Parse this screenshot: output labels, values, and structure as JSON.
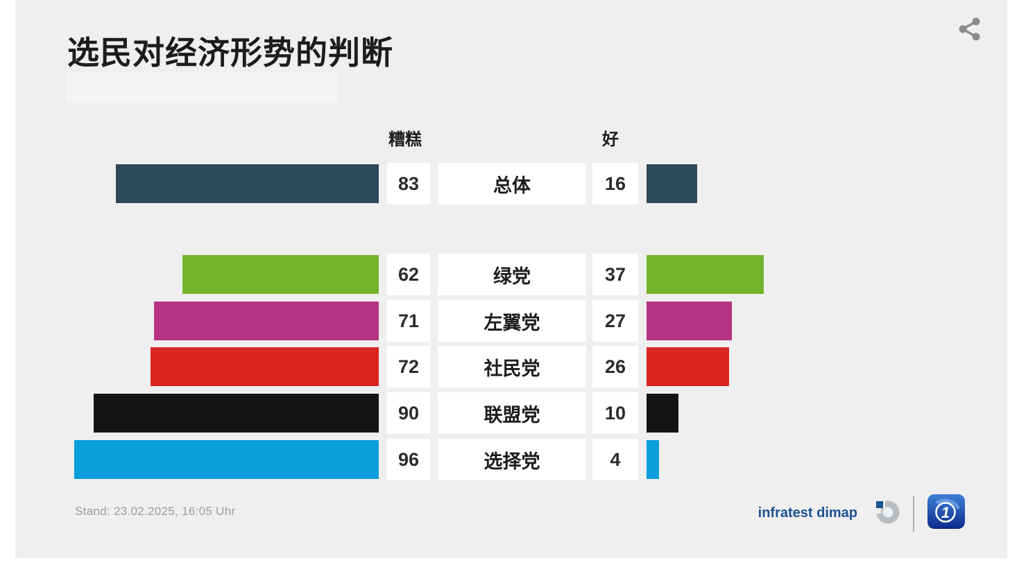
{
  "title": "选民对经济形势的判断",
  "chart_data": {
    "type": "bar",
    "subtype": "diverging-horizontal",
    "title": "选民对经济形势的判断",
    "left_header": "糟糕",
    "right_header": "好",
    "value_unit": "percent",
    "xlim": [
      0,
      100
    ],
    "categories": [
      "总体",
      "绿党",
      "左翼党",
      "社民党",
      "联盟党",
      "选择党"
    ],
    "series": [
      {
        "name": "糟糕",
        "values": [
          83,
          62,
          71,
          72,
          90,
          96
        ]
      },
      {
        "name": "好",
        "values": [
          16,
          37,
          27,
          26,
          10,
          4
        ]
      }
    ],
    "rows": [
      {
        "label": "总体",
        "bad": 83,
        "good": 16,
        "color": "#2d4857"
      },
      {
        "label": "绿党",
        "bad": 62,
        "good": 37,
        "color": "#72b52a"
      },
      {
        "label": "左翼党",
        "bad": 71,
        "good": 27,
        "color": "#b53383"
      },
      {
        "label": "社民党",
        "bad": 72,
        "good": 26,
        "color": "#da241f"
      },
      {
        "label": "联盟党",
        "bad": 90,
        "good": 10,
        "color": "#141413"
      },
      {
        "label": "选择党",
        "bad": 96,
        "good": 4,
        "color": "#0a9edd"
      }
    ],
    "legend": "none",
    "grid": false
  },
  "footer": {
    "stand": "Stand: 23.02.2025, 16:05 Uhr",
    "source_label": "infratest dimap"
  },
  "icons": {
    "share": "share-icon",
    "infratest_logo": "infratest-dimap-logo",
    "ard_logo": "ard-logo"
  },
  "colors": {
    "card_background": "#efefef",
    "page_background": "#ffffff",
    "box_background": "#ffffff",
    "title_text": "#1c1c1a",
    "stand_text": "#9b9b9b",
    "infratest_blue": "#1d5191",
    "share_icon_gray": "#8c8c8c"
  }
}
